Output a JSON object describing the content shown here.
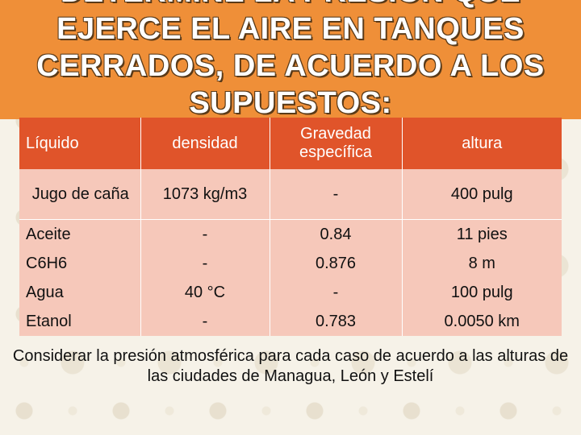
{
  "title": {
    "line1": "DETERMINE LA PRESIÓN QUE",
    "line2": "EJERCE EL AIRE EN TANQUES",
    "line3": "CERRADOS, DE ACUERDO A LOS",
    "line4": "SUPUESTOS:"
  },
  "table": {
    "headers": [
      "Líquido",
      "densidad",
      "Gravedad específica",
      "altura"
    ],
    "rows": [
      [
        "Jugo de caña",
        "1073 kg/m3",
        "-",
        "400 pulg"
      ],
      [
        "Aceite",
        "-",
        "0.84",
        "11 pies"
      ],
      [
        "C6H6",
        "-",
        "0.876",
        "8 m"
      ],
      [
        "Agua",
        "40 °C",
        "-",
        "100 pulg"
      ],
      [
        "Etanol",
        "-",
        "0.783",
        "0.0050 km"
      ]
    ]
  },
  "note": "Considerar la presión atmosférica para cada caso de acuerdo a las alturas de las ciudades de Managua, León y Estelí",
  "colors": {
    "title_bar": "#ef8f38",
    "table_header": "#e0542a",
    "table_row": "#f6c8ba",
    "background": "#f6f2e8"
  }
}
